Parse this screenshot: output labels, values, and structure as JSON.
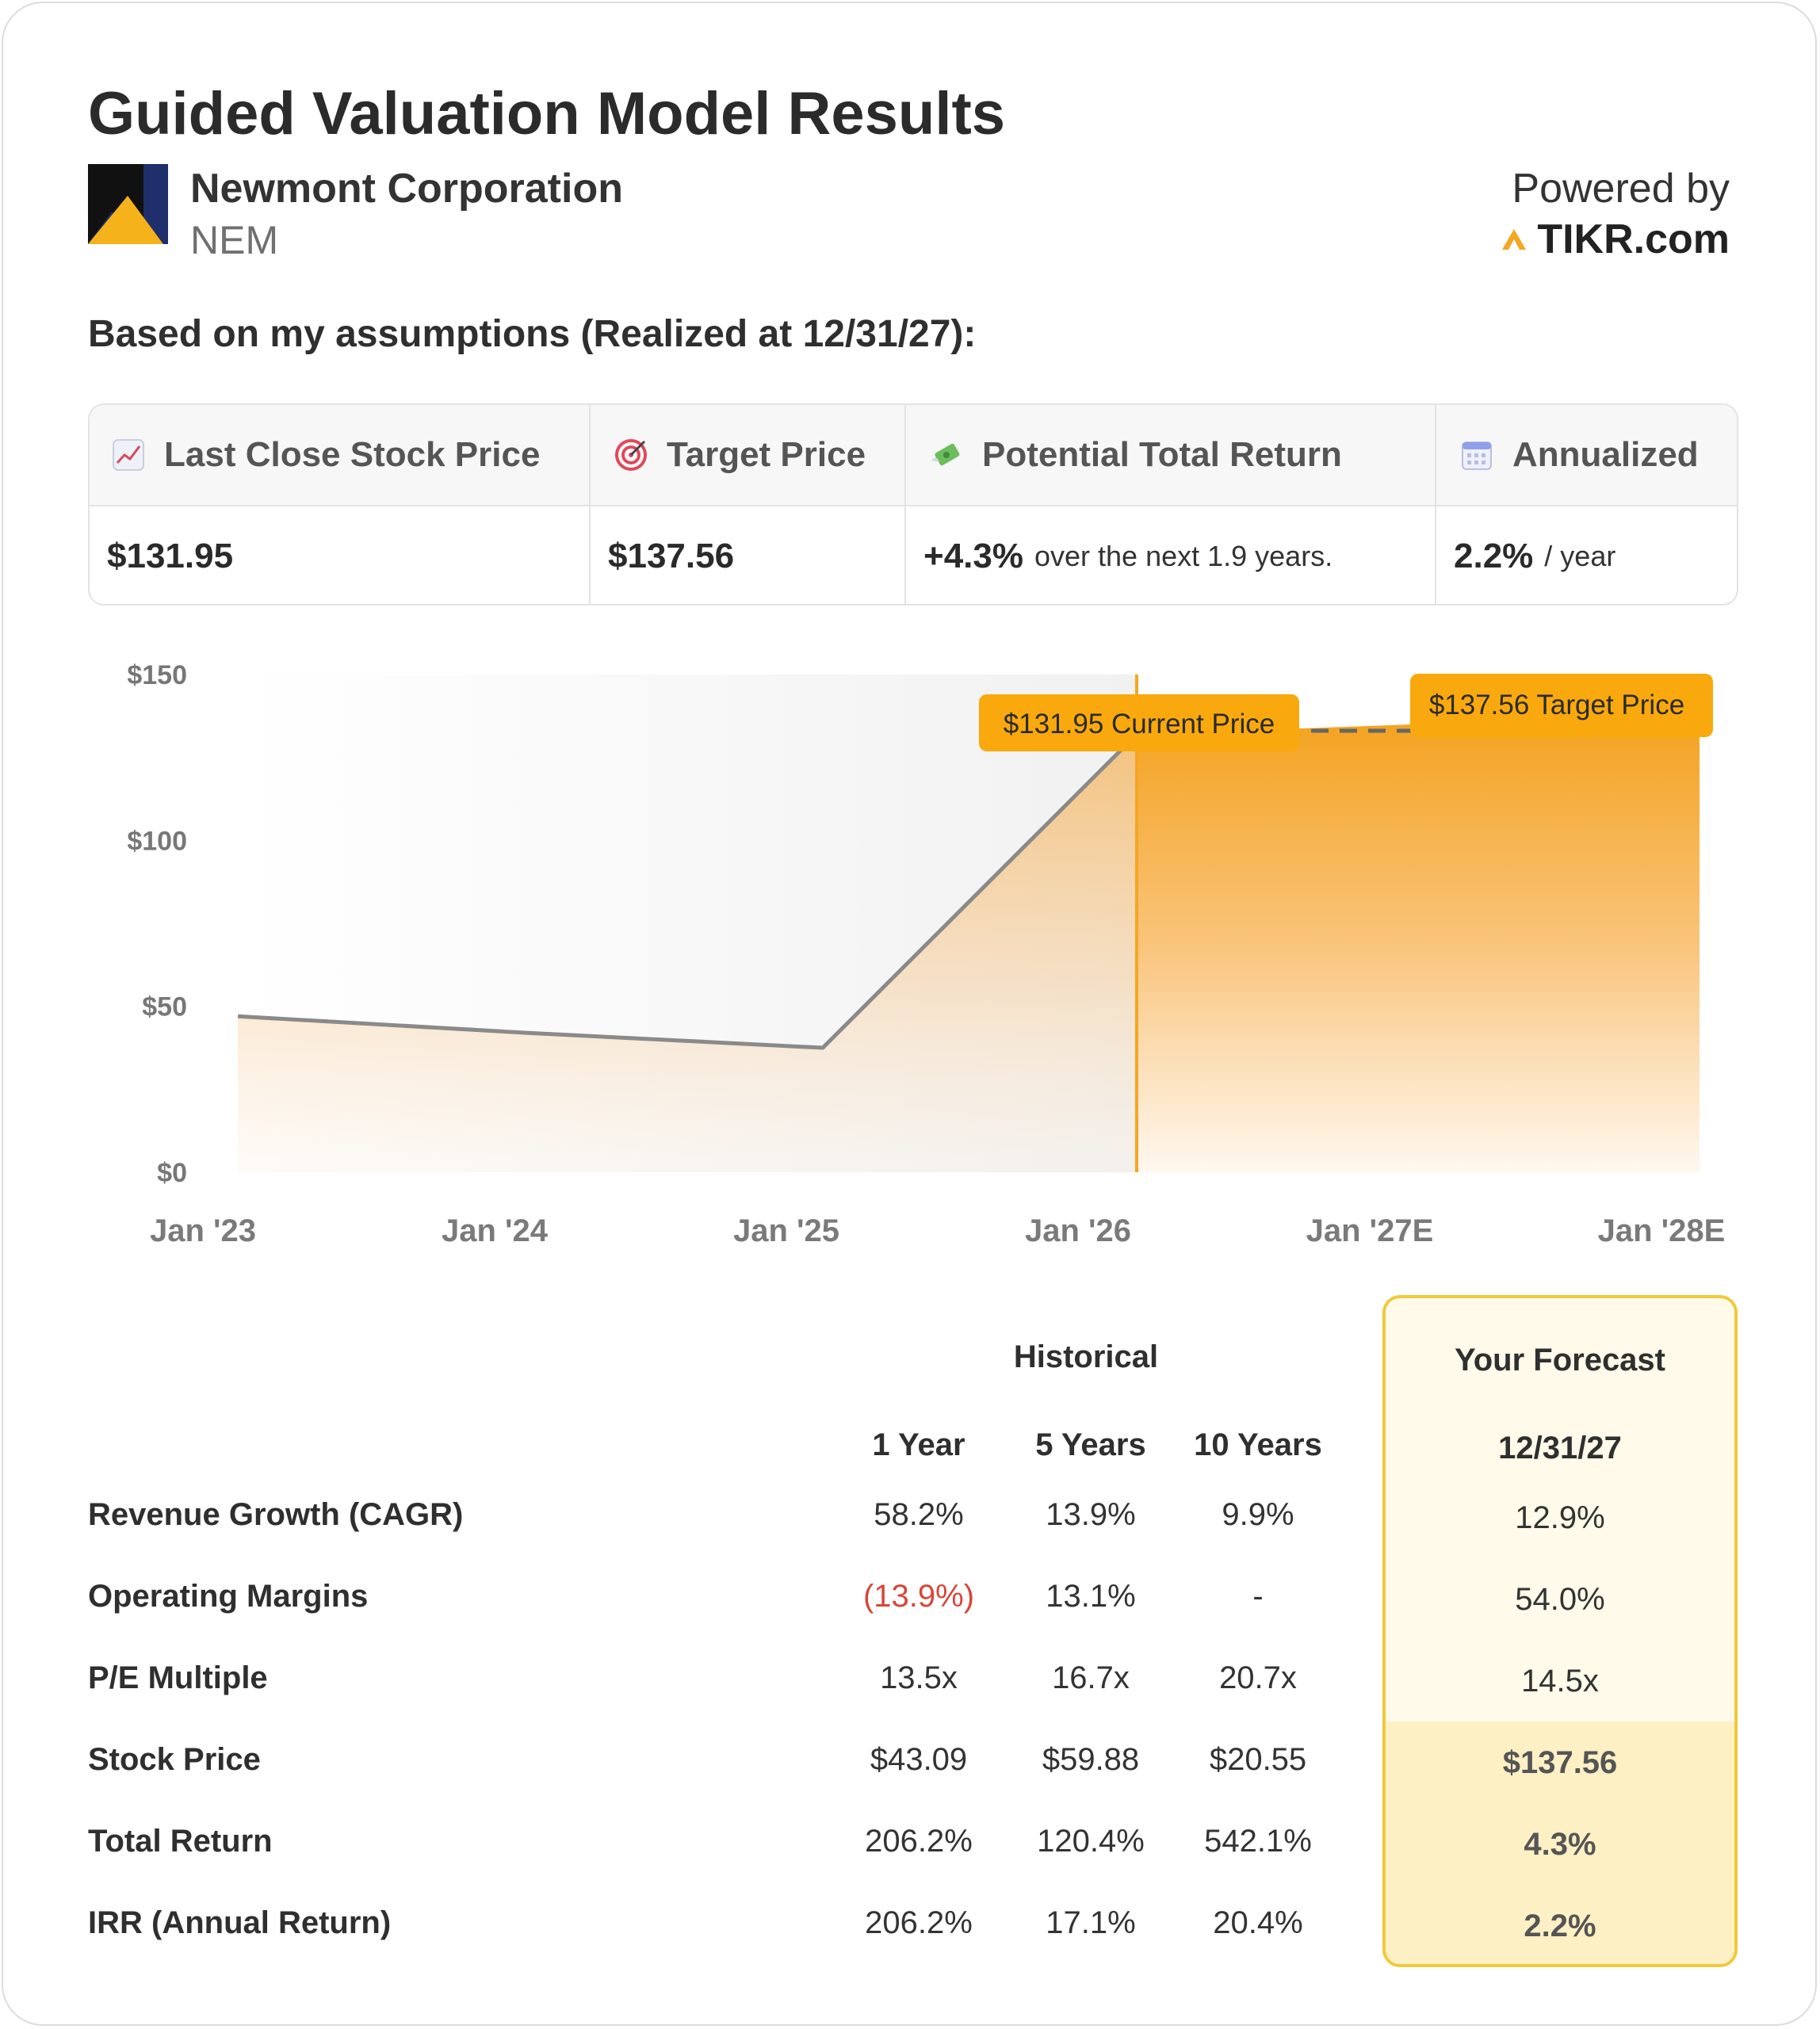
{
  "header": {
    "title": "Guided Valuation Model Results",
    "company": "Newmont Corporation",
    "ticker": "NEM",
    "powered_by": "Powered by",
    "brand": "TIKR.com"
  },
  "subtitle": "Based on my assumptions (Realized at 12/31/27):",
  "summary": {
    "headers": [
      {
        "label": "Last Close Stock Price",
        "icon": "chart-increasing-icon"
      },
      {
        "label": "Target Price",
        "icon": "target-icon"
      },
      {
        "label": "Potential Total Return",
        "icon": "money-with-wings-icon"
      },
      {
        "label": "Annualized",
        "icon": "calendar-icon"
      }
    ],
    "last_close": "$131.95",
    "target_price": "$137.56",
    "total_return": "+4.3%",
    "total_return_note": "over the next 1.9 years.",
    "annualized": "2.2%",
    "annualized_note": "/ year"
  },
  "chart_data": {
    "type": "area",
    "y_ticks": [
      "$150",
      "$100",
      "$50",
      "$0"
    ],
    "ylim": [
      0,
      150
    ],
    "x_ticks": [
      "Jan '23",
      "Jan '24",
      "Jan '25",
      "Jan '26",
      "Jan '27E",
      "Jan '28E"
    ],
    "historical_series": {
      "x": [
        "Jan '23",
        "Jan '24",
        "Jan '25",
        "Feb '26"
      ],
      "values": [
        47,
        42,
        37.5,
        131.95
      ]
    },
    "forecast": {
      "start_value": 131.95,
      "target_value": 137.56
    },
    "current_price_label": "$131.95 Current Price",
    "target_price_label": "$137.56 Target Price",
    "colors": {
      "accent": "#f5a623",
      "line": "#8a8a8a",
      "label_bg": "#f9a90d"
    }
  },
  "table": {
    "historical_header": "Historical",
    "forecast_header": "Your Forecast",
    "columns": [
      "1 Year",
      "5 Years",
      "10 Years"
    ],
    "forecast_date": "12/31/27",
    "rows": [
      {
        "label": "Revenue Growth (CAGR)",
        "values": [
          "58.2%",
          "13.9%",
          "9.9%"
        ],
        "forecast": "12.9%"
      },
      {
        "label": "Operating Margins",
        "values": [
          "(13.9%)",
          "13.1%",
          "-"
        ],
        "forecast": "54.0%"
      },
      {
        "label": "P/E Multiple",
        "values": [
          "13.5x",
          "16.7x",
          "20.7x"
        ],
        "forecast": "14.5x"
      },
      {
        "label": "Stock Price",
        "values": [
          "$43.09",
          "$59.88",
          "$20.55"
        ],
        "forecast": "$137.56"
      },
      {
        "label": "Total Return",
        "values": [
          "206.2%",
          "120.4%",
          "542.1%"
        ],
        "forecast": "4.3%"
      },
      {
        "label": "IRR (Annual Return)",
        "values": [
          "206.2%",
          "17.1%",
          "20.4%"
        ],
        "forecast": "2.2%"
      }
    ]
  }
}
